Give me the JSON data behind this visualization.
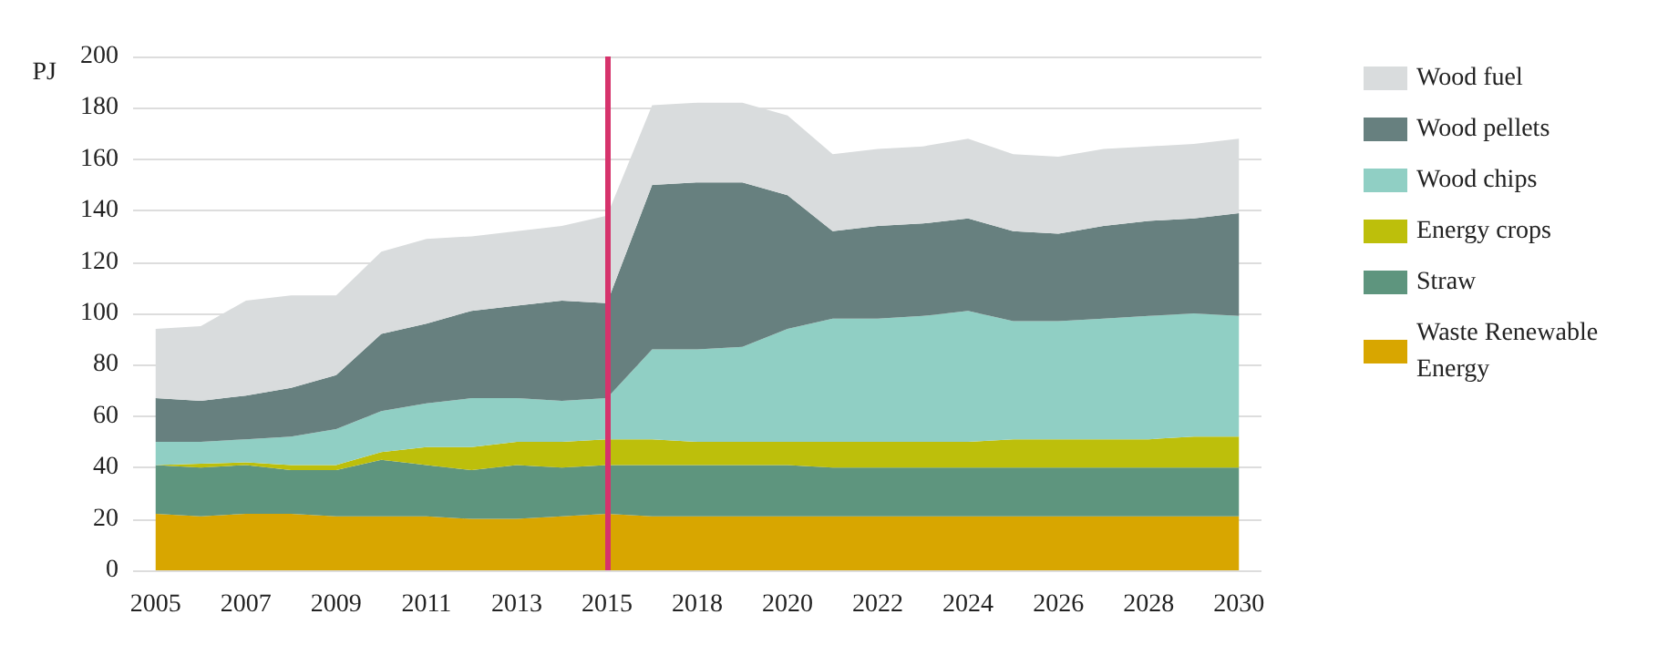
{
  "chart_data": {
    "type": "area",
    "stacked": true,
    "ylabel": "PJ",
    "categories": [
      "2005",
      null,
      "2007",
      null,
      "2009",
      null,
      "2011",
      null,
      "2013",
      null,
      "2015",
      null,
      "2018",
      null,
      "2020",
      null,
      "2022",
      null,
      "2024",
      null,
      "2026",
      null,
      "2028",
      null,
      "2030"
    ],
    "series": [
      {
        "name": "Waste Renewable Energy",
        "color": "#d8a600",
        "values": [
          22,
          21,
          22,
          22,
          21,
          21,
          21,
          20,
          20,
          21,
          22,
          21,
          21,
          21,
          21,
          21,
          21,
          21,
          21,
          21,
          21,
          21,
          21,
          21,
          21
        ]
      },
      {
        "name": "Straw",
        "color": "#5e957e",
        "values": [
          19,
          19,
          19,
          17,
          18,
          22,
          20,
          19,
          21,
          19,
          19,
          20,
          20,
          20,
          20,
          19,
          19,
          19,
          19,
          19,
          19,
          19,
          19,
          19,
          19
        ]
      },
      {
        "name": "Energy crops",
        "color": "#bdbf0b",
        "values": [
          0,
          1.5,
          1,
          2,
          2,
          3,
          7,
          9,
          9,
          10,
          10,
          10,
          9,
          9,
          9,
          10,
          10,
          10,
          10,
          11,
          11,
          11,
          11,
          12,
          12
        ]
      },
      {
        "name": "Wood chips",
        "color": "#90cfc4",
        "values": [
          9,
          8.5,
          9,
          11,
          14,
          16,
          17,
          19,
          17,
          16,
          16,
          35,
          36,
          37,
          44,
          48,
          48,
          49,
          51,
          46,
          46,
          47,
          48,
          48,
          47
        ]
      },
      {
        "name": "Wood pellets",
        "color": "#67807f",
        "values": [
          17,
          16,
          17,
          19,
          21,
          30,
          31,
          34,
          36,
          39,
          37,
          64,
          65,
          64,
          52,
          34,
          36,
          36,
          36,
          35,
          34,
          36,
          37,
          37,
          40
        ]
      },
      {
        "name": "Wood fuel",
        "color": "#d9dcdd",
        "values": [
          27,
          29,
          37,
          36,
          31,
          32,
          33,
          29,
          29,
          29,
          34,
          31,
          31,
          31,
          31,
          30,
          30,
          30,
          31,
          30,
          30,
          30,
          29,
          29,
          29
        ]
      }
    ],
    "ylim": [
      0,
      200
    ],
    "yticks": [
      0,
      20,
      40,
      60,
      80,
      100,
      120,
      140,
      160,
      180,
      200
    ],
    "grid": "y",
    "legend": "right",
    "ref_lines": [
      {
        "axis": "x",
        "value": "2015",
        "color": "#d6336c"
      }
    ]
  }
}
